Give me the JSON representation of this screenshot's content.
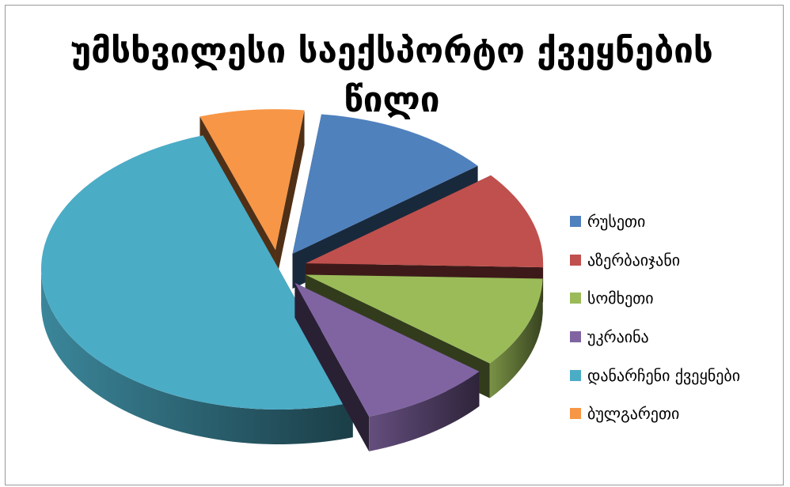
{
  "chart_data": {
    "type": "pie",
    "title": "უმსხვილესი საექსპორტო ქვეყნების წილი",
    "style": "3d-exploded",
    "legend_position": "right",
    "categories": [
      "რუსეთი",
      "აზერბაიჯანი",
      "სომხეთი",
      "უკრაინა",
      "დანარჩენი ქვეყნები",
      "ბულგარეთი"
    ],
    "values": [
      12.3,
      11.2,
      10.4,
      9.1,
      49.9,
      7.1
    ],
    "unit": "percent (estimated share)",
    "colors": [
      "#4F81BD",
      "#C0504D",
      "#9BBB59",
      "#8064A2",
      "#4BACC6",
      "#F79646"
    ]
  }
}
